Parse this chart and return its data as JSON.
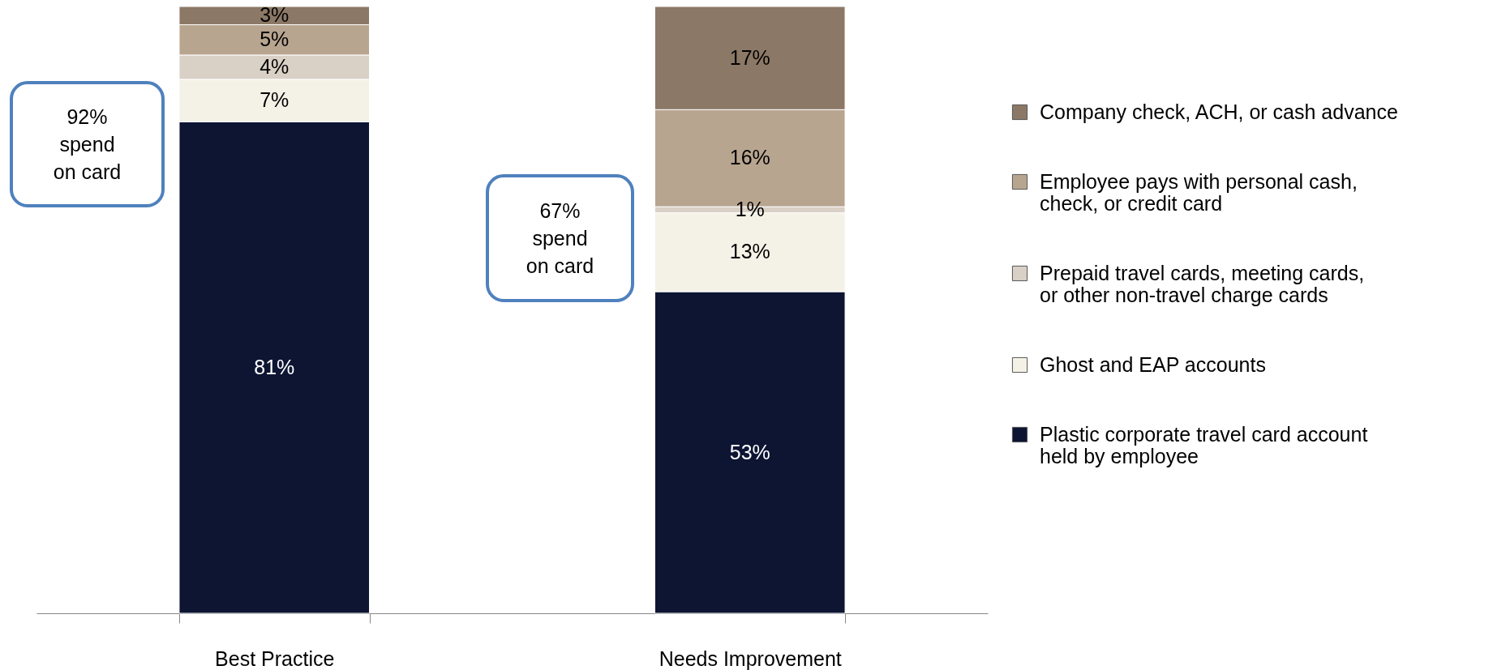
{
  "chart_data": {
    "type": "bar",
    "stacked": true,
    "legend": "right",
    "tick_labels": "x",
    "categories": [
      "Best Practice",
      "Needs Improvement"
    ],
    "series": [
      {
        "name": "Plastic corporate travel card account held by employee",
        "color": "#0d1533",
        "values": [
          81,
          53
        ],
        "value_labels": [
          "81%",
          "53%"
        ]
      },
      {
        "name": "Ghost and EAP accounts",
        "color": "#f4f1e6",
        "values": [
          7,
          13
        ],
        "value_labels": [
          "7%",
          "13%"
        ]
      },
      {
        "name": "Prepaid travel cards, meeting cards, or other non-travel charge cards",
        "color": "#d9d0c6",
        "values": [
          4,
          1
        ],
        "value_labels": [
          "4%",
          "1%"
        ]
      },
      {
        "name": "Employee pays with personal cash, check, or credit card",
        "color": "#b8a590",
        "values": [
          5,
          16
        ],
        "value_labels": [
          "5%",
          "16%"
        ]
      },
      {
        "name": "Company check, ACH, or cash advance",
        "color": "#8c7866",
        "values": [
          3,
          17
        ],
        "value_labels": [
          "3%",
          "17%"
        ]
      }
    ],
    "annotations": [
      "92% spend on card",
      "67% spend on card"
    ]
  }
}
